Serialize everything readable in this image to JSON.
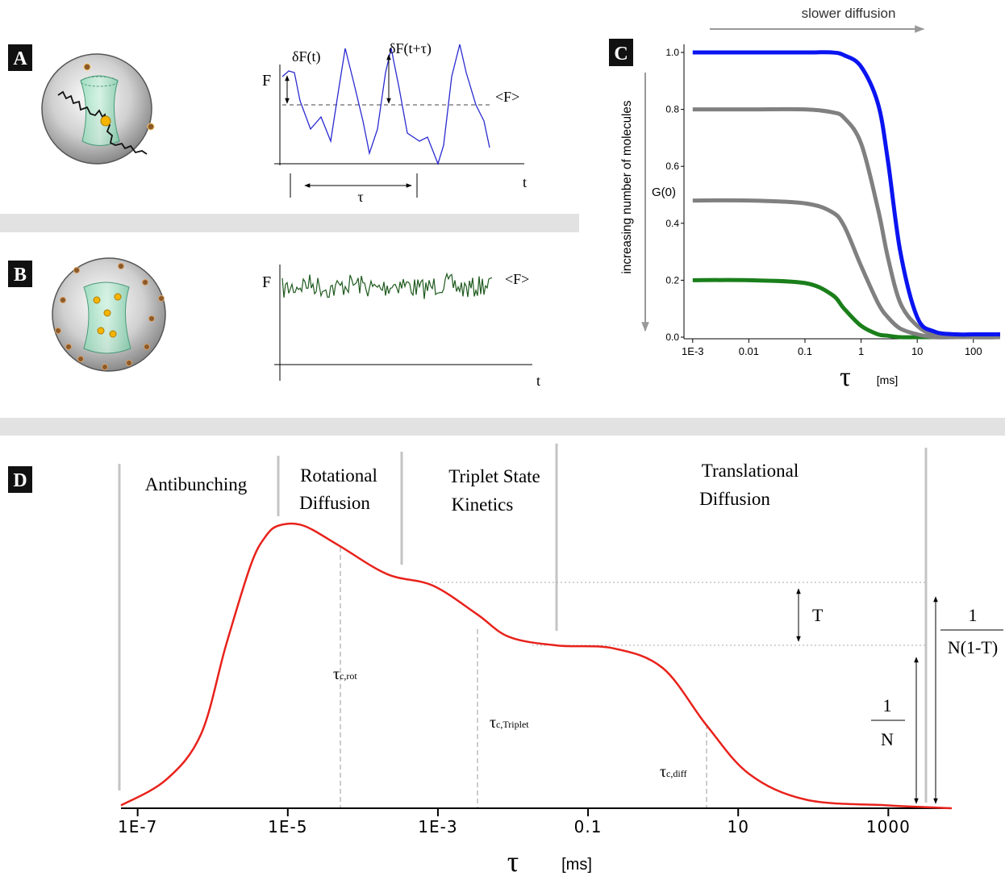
{
  "panel_a": {
    "label": "A",
    "y_label": "F",
    "x_label": "t",
    "delta_f_t": "δF(t)",
    "delta_f_t_tau": "δF(t+τ)",
    "mean": "<F>",
    "lag": "τ"
  },
  "panel_b": {
    "label": "B",
    "y_label": "F",
    "x_label": "t",
    "mean": "<F>"
  },
  "chart_data": [
    {
      "type": "line",
      "panel_label": "C",
      "top_annotation": "slower diffusion",
      "side_annotation": "increasing number of molecules",
      "y_annotation": "G(0)",
      "x_label": "τ",
      "x_unit": "[ms]",
      "x_scale": "log",
      "x": [
        0.001,
        0.01,
        0.1,
        0.3,
        0.5,
        1,
        2,
        3,
        5,
        10,
        20,
        50,
        100,
        300
      ],
      "series": [
        {
          "color": "#0a14f0",
          "values": [
            1,
            1,
            1,
            1,
            0.99,
            0.95,
            0.82,
            0.62,
            0.3,
            0.07,
            0.02,
            0.01,
            0.01,
            0.01
          ]
        },
        {
          "color": "#808080",
          "values": [
            0.8,
            0.8,
            0.8,
            0.79,
            0.77,
            0.68,
            0.45,
            0.28,
            0.12,
            0.04,
            0.01,
            0.01,
            0,
            0
          ]
        },
        {
          "color": "#808080",
          "values": [
            0.48,
            0.48,
            0.47,
            0.44,
            0.39,
            0.25,
            0.12,
            0.07,
            0.03,
            0.01,
            0,
            0,
            0,
            0
          ]
        },
        {
          "color": "#1a7f1a",
          "values": [
            0.2,
            0.2,
            0.19,
            0.15,
            0.1,
            0.04,
            0.01,
            0.005,
            0,
            0,
            0,
            0,
            0,
            0
          ]
        }
      ],
      "xlim": [
        0.0007,
        300
      ],
      "ylim": [
        0,
        1
      ],
      "xticks": [
        {
          "value": 0.001,
          "label": "1E-3"
        },
        0.01,
        0.1,
        1,
        10,
        100
      ],
      "yticks": [
        {
          "value": 0,
          "label": "0.0"
        },
        0.2,
        0.4,
        0.6,
        0.8,
        {
          "value": 1,
          "label": "1.0"
        }
      ]
    },
    {
      "type": "line",
      "panel_label": "D",
      "x_label": "τ",
      "x_unit": "[ms]",
      "x_scale": "log",
      "regions": [
        [
          "Antibunching"
        ],
        [
          "Rotational",
          "Diffusion"
        ],
        [
          "Triplet State",
          "Kinetics"
        ],
        [
          "Translational",
          "Diffusion"
        ]
      ],
      "time_constants": [
        {
          "symbol": "τ",
          "subscript": "c,rot"
        },
        {
          "symbol": "τ",
          "subscript": "c,Triplet"
        },
        {
          "symbol": "τ",
          "subscript": "c,diff"
        }
      ],
      "triplet_label": "T",
      "amplitude_1_over_n": {
        "numerator": "1",
        "denominator": "N"
      },
      "amplitude_1_over_n1t": {
        "numerator": "1",
        "denominator": "N(1-T)"
      },
      "x": [
        6e-08,
        2.4e-07,
        7e-07,
        1.5e-06,
        3.2e-06,
        5e-06,
        7.6e-06,
        1.6e-05,
        4.8e-05,
        0.00021,
        0.00085,
        0.0033,
        0.0089,
        0.039,
        0.22,
        1,
        3.8,
        14,
        80,
        1000,
        7000
      ],
      "values": [
        0.01,
        0.1,
        0.26,
        0.57,
        0.85,
        0.95,
        0.99,
        0.99,
        0.92,
        0.82,
        0.78,
        0.68,
        0.6,
        0.57,
        0.56,
        0.49,
        0.29,
        0.12,
        0.03,
        0.01,
        0
      ],
      "color": "#e8221b",
      "xlim": [
        6e-08,
        7000
      ],
      "ylim": [
        0,
        1
      ],
      "xticks": [
        {
          "value": 1e-07,
          "label": "1E-7"
        },
        {
          "value": 1e-05,
          "label": "1E-5"
        },
        {
          "value": 0.001,
          "label": "1E-3"
        },
        0.1,
        10,
        1000
      ]
    }
  ]
}
